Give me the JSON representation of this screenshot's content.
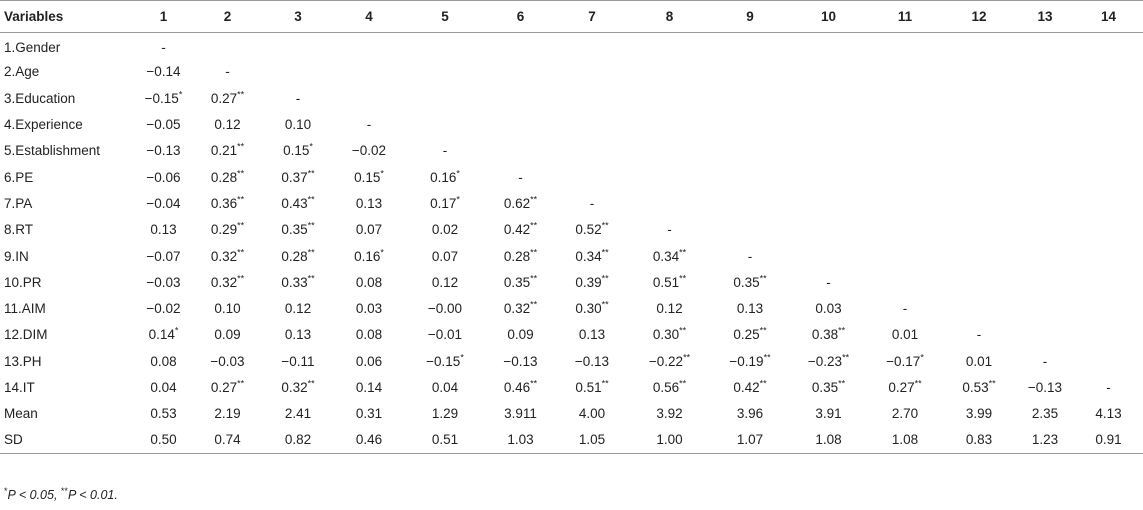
{
  "table": {
    "corner_label": "Variables",
    "columns": [
      "1",
      "2",
      "3",
      "4",
      "5",
      "6",
      "7",
      "8",
      "9",
      "10",
      "11",
      "12",
      "13",
      "14"
    ],
    "rows": [
      {
        "label": "1.Gender",
        "cells": [
          [
            "-",
            ""
          ],
          [
            "",
            ""
          ],
          [
            "",
            ""
          ],
          [
            "",
            ""
          ],
          [
            "",
            ""
          ],
          [
            "",
            ""
          ],
          [
            "",
            ""
          ],
          [
            "",
            ""
          ],
          [
            "",
            ""
          ],
          [
            "",
            ""
          ],
          [
            "",
            ""
          ],
          [
            "",
            ""
          ],
          [
            "",
            ""
          ],
          [
            "",
            ""
          ]
        ]
      },
      {
        "label": "2.Age",
        "cells": [
          [
            "−0.14",
            ""
          ],
          [
            "-",
            ""
          ],
          [
            "",
            ""
          ],
          [
            "",
            ""
          ],
          [
            "",
            ""
          ],
          [
            "",
            ""
          ],
          [
            "",
            ""
          ],
          [
            "",
            ""
          ],
          [
            "",
            ""
          ],
          [
            "",
            ""
          ],
          [
            "",
            ""
          ],
          [
            "",
            ""
          ],
          [
            "",
            ""
          ],
          [
            "",
            ""
          ]
        ]
      },
      {
        "label": "3.Education",
        "cells": [
          [
            "−0.15",
            "*"
          ],
          [
            "0.27",
            "**"
          ],
          [
            "-",
            ""
          ],
          [
            "",
            ""
          ],
          [
            "",
            ""
          ],
          [
            "",
            ""
          ],
          [
            "",
            ""
          ],
          [
            "",
            ""
          ],
          [
            "",
            ""
          ],
          [
            "",
            ""
          ],
          [
            "",
            ""
          ],
          [
            "",
            ""
          ],
          [
            "",
            ""
          ],
          [
            "",
            ""
          ]
        ]
      },
      {
        "label": "4.Experience",
        "cells": [
          [
            "−0.05",
            ""
          ],
          [
            "0.12",
            ""
          ],
          [
            "0.10",
            ""
          ],
          [
            "-",
            ""
          ],
          [
            "",
            ""
          ],
          [
            "",
            ""
          ],
          [
            "",
            ""
          ],
          [
            "",
            ""
          ],
          [
            "",
            ""
          ],
          [
            "",
            ""
          ],
          [
            "",
            ""
          ],
          [
            "",
            ""
          ],
          [
            "",
            ""
          ],
          [
            "",
            ""
          ]
        ]
      },
      {
        "label": "5.Establishment",
        "cells": [
          [
            "−0.13",
            ""
          ],
          [
            "0.21",
            "**"
          ],
          [
            "0.15",
            "*"
          ],
          [
            "−0.02",
            ""
          ],
          [
            "-",
            ""
          ],
          [
            "",
            ""
          ],
          [
            "",
            ""
          ],
          [
            "",
            ""
          ],
          [
            "",
            ""
          ],
          [
            "",
            ""
          ],
          [
            "",
            ""
          ],
          [
            "",
            ""
          ],
          [
            "",
            ""
          ],
          [
            "",
            ""
          ]
        ]
      },
      {
        "label": "6.PE",
        "cells": [
          [
            "−0.06",
            ""
          ],
          [
            "0.28",
            "**"
          ],
          [
            "0.37",
            "**"
          ],
          [
            "0.15",
            "*"
          ],
          [
            "0.16",
            "*"
          ],
          [
            "-",
            ""
          ],
          [
            "",
            ""
          ],
          [
            "",
            ""
          ],
          [
            "",
            ""
          ],
          [
            "",
            ""
          ],
          [
            "",
            ""
          ],
          [
            "",
            ""
          ],
          [
            "",
            ""
          ],
          [
            "",
            ""
          ]
        ]
      },
      {
        "label": "7.PA",
        "cells": [
          [
            "−0.04",
            ""
          ],
          [
            "0.36",
            "**"
          ],
          [
            "0.43",
            "**"
          ],
          [
            "0.13",
            ""
          ],
          [
            "0.17",
            "*"
          ],
          [
            "0.62",
            "**"
          ],
          [
            "-",
            ""
          ],
          [
            "",
            ""
          ],
          [
            "",
            ""
          ],
          [
            "",
            ""
          ],
          [
            "",
            ""
          ],
          [
            "",
            ""
          ],
          [
            "",
            ""
          ],
          [
            "",
            ""
          ]
        ]
      },
      {
        "label": "8.RT",
        "cells": [
          [
            "0.13",
            ""
          ],
          [
            "0.29",
            "**"
          ],
          [
            "0.35",
            "**"
          ],
          [
            "0.07",
            ""
          ],
          [
            "0.02",
            ""
          ],
          [
            "0.42",
            "**"
          ],
          [
            "0.52",
            "**"
          ],
          [
            "-",
            ""
          ],
          [
            "",
            ""
          ],
          [
            "",
            ""
          ],
          [
            "",
            ""
          ],
          [
            "",
            ""
          ],
          [
            "",
            ""
          ],
          [
            "",
            ""
          ]
        ]
      },
      {
        "label": "9.IN",
        "cells": [
          [
            "−0.07",
            ""
          ],
          [
            "0.32",
            "**"
          ],
          [
            "0.28",
            "**"
          ],
          [
            "0.16",
            "*"
          ],
          [
            "0.07",
            ""
          ],
          [
            "0.28",
            "**"
          ],
          [
            "0.34",
            "**"
          ],
          [
            "0.34",
            "**"
          ],
          [
            "-",
            ""
          ],
          [
            "",
            ""
          ],
          [
            "",
            ""
          ],
          [
            "",
            ""
          ],
          [
            "",
            ""
          ],
          [
            "",
            ""
          ]
        ]
      },
      {
        "label": "10.PR",
        "cells": [
          [
            "−0.03",
            ""
          ],
          [
            "0.32",
            "**"
          ],
          [
            "0.33",
            "**"
          ],
          [
            "0.08",
            ""
          ],
          [
            "0.12",
            ""
          ],
          [
            "0.35",
            "**"
          ],
          [
            "0.39",
            "**"
          ],
          [
            "0.51",
            "**"
          ],
          [
            "0.35",
            "**"
          ],
          [
            "-",
            ""
          ],
          [
            "",
            ""
          ],
          [
            "",
            ""
          ],
          [
            "",
            ""
          ],
          [
            "",
            ""
          ]
        ]
      },
      {
        "label": "11.AIM",
        "cells": [
          [
            "−0.02",
            ""
          ],
          [
            "0.10",
            ""
          ],
          [
            "0.12",
            ""
          ],
          [
            "0.03",
            ""
          ],
          [
            "−0.00",
            ""
          ],
          [
            "0.32",
            "**"
          ],
          [
            "0.30",
            "**"
          ],
          [
            "0.12",
            ""
          ],
          [
            "0.13",
            ""
          ],
          [
            "0.03",
            ""
          ],
          [
            "-",
            ""
          ],
          [
            "",
            ""
          ],
          [
            "",
            ""
          ],
          [
            "",
            ""
          ]
        ]
      },
      {
        "label": "12.DIM",
        "cells": [
          [
            "0.14",
            "*"
          ],
          [
            "0.09",
            ""
          ],
          [
            "0.13",
            ""
          ],
          [
            "0.08",
            ""
          ],
          [
            "−0.01",
            ""
          ],
          [
            "0.09",
            ""
          ],
          [
            "0.13",
            ""
          ],
          [
            "0.30",
            "**"
          ],
          [
            "0.25",
            "**"
          ],
          [
            "0.38",
            "**"
          ],
          [
            "0.01",
            ""
          ],
          [
            "-",
            ""
          ],
          [
            "",
            ""
          ],
          [
            "",
            ""
          ]
        ]
      },
      {
        "label": "13.PH",
        "cells": [
          [
            "0.08",
            ""
          ],
          [
            "−0.03",
            ""
          ],
          [
            "−0.11",
            ""
          ],
          [
            "0.06",
            ""
          ],
          [
            "−0.15",
            "*"
          ],
          [
            "−0.13",
            ""
          ],
          [
            "−0.13",
            ""
          ],
          [
            "−0.22",
            "**"
          ],
          [
            "−0.19",
            "**"
          ],
          [
            "−0.23",
            "**"
          ],
          [
            "−0.17",
            "*"
          ],
          [
            "0.01",
            ""
          ],
          [
            "-",
            ""
          ],
          [
            "",
            ""
          ]
        ]
      },
      {
        "label": "14.IT",
        "cells": [
          [
            "0.04",
            ""
          ],
          [
            "0.27",
            "**"
          ],
          [
            "0.32",
            "**"
          ],
          [
            "0.14",
            ""
          ],
          [
            "0.04",
            ""
          ],
          [
            "0.46",
            "**"
          ],
          [
            "0.51",
            "**"
          ],
          [
            "0.56",
            "**"
          ],
          [
            "0.42",
            "**"
          ],
          [
            "0.35",
            "**"
          ],
          [
            "0.27",
            "**"
          ],
          [
            "0.53",
            "**"
          ],
          [
            "−0.13",
            ""
          ],
          [
            "-",
            ""
          ]
        ]
      },
      {
        "label": "Mean",
        "cells": [
          [
            "0.53",
            ""
          ],
          [
            "2.19",
            ""
          ],
          [
            "2.41",
            ""
          ],
          [
            "0.31",
            ""
          ],
          [
            "1.29",
            ""
          ],
          [
            "3.911",
            ""
          ],
          [
            "4.00",
            ""
          ],
          [
            "3.92",
            ""
          ],
          [
            "3.96",
            ""
          ],
          [
            "3.91",
            ""
          ],
          [
            "2.70",
            ""
          ],
          [
            "3.99",
            ""
          ],
          [
            "2.35",
            ""
          ],
          [
            "4.13",
            ""
          ]
        ]
      },
      {
        "label": "SD",
        "cells": [
          [
            "0.50",
            ""
          ],
          [
            "0.74",
            ""
          ],
          [
            "0.82",
            ""
          ],
          [
            "0.46",
            ""
          ],
          [
            "0.51",
            ""
          ],
          [
            "1.03",
            ""
          ],
          [
            "1.05",
            ""
          ],
          [
            "1.00",
            ""
          ],
          [
            "1.07",
            ""
          ],
          [
            "1.08",
            ""
          ],
          [
            "1.08",
            ""
          ],
          [
            "0.83",
            ""
          ],
          [
            "1.23",
            ""
          ],
          [
            "0.91",
            ""
          ]
        ]
      }
    ]
  },
  "footnote": {
    "sup1": "*",
    "text1": "P < 0.05, ",
    "sup2": "**",
    "text2": "P < 0.01."
  }
}
